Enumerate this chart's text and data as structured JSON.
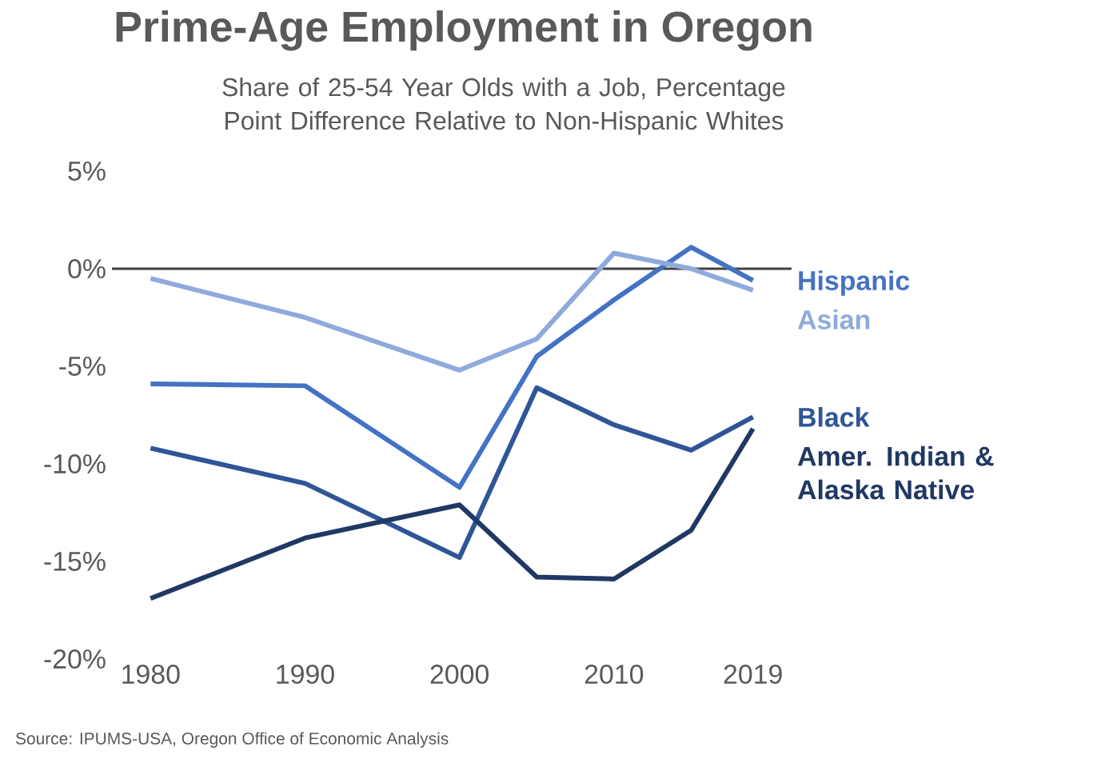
{
  "chart_data": {
    "type": "line",
    "title": "Prime-Age Employment in Oregon",
    "subtitle": "Share of 25-54 Year Olds with a Job, Percentage Point Difference Relative to Non-Hispanic Whites",
    "x": [
      1980,
      1990,
      2000,
      2005,
      2010,
      2015,
      2019
    ],
    "xlim": [
      1977.5,
      2021.5
    ],
    "xticks": [
      1980,
      1990,
      2000,
      2010,
      2019
    ],
    "ylim": [
      -20,
      5
    ],
    "yticks": [
      {
        "value": 5,
        "label": "5%"
      },
      {
        "value": 0,
        "label": "0%"
      },
      {
        "value": -5,
        "label": "-5%"
      },
      {
        "value": -10,
        "label": "-10%"
      },
      {
        "value": -15,
        "label": "-15%"
      },
      {
        "value": -20,
        "label": "-20%"
      }
    ],
    "series": [
      {
        "name": "Hispanic",
        "color": "#4472c4",
        "values": [
          -5.9,
          -6.0,
          -11.2,
          -4.5,
          -1.6,
          1.1,
          -0.6
        ]
      },
      {
        "name": "Asian",
        "color": "#8faadc",
        "values": [
          -0.5,
          -2.5,
          -5.2,
          -3.6,
          0.8,
          0.0,
          -1.1
        ]
      },
      {
        "name": "Black",
        "color": "#2f5597",
        "values": [
          -9.2,
          -11.0,
          -14.8,
          -6.1,
          -8.0,
          -9.3,
          -7.6
        ]
      },
      {
        "name": "Amer. Indian & Alaska Native",
        "color": "#203864",
        "values": [
          -16.9,
          -13.8,
          -12.1,
          -15.8,
          -15.9,
          -13.4,
          -8.2
        ]
      }
    ],
    "ref_lines": [
      {
        "axis": "y",
        "value": 0,
        "color": "#404040"
      }
    ],
    "grid": false,
    "legend": "right",
    "marker": "none",
    "line_style": "solid",
    "annotations": [
      "Source: IPUMS-USA, Oregon Office of Economic Analysis"
    ]
  }
}
